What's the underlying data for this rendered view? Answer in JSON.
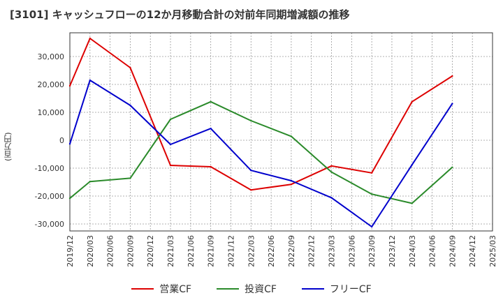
{
  "chart_data": {
    "type": "line",
    "title": "[3101]  キャッシュフローの12か月移動合計の対前年同期増減額の推移",
    "ylabel": "(百万円)",
    "xlabel": "",
    "ylim": [
      -32500,
      38500
    ],
    "yticks": [
      30000,
      20000,
      10000,
      0,
      -10000,
      -20000,
      -30000
    ],
    "ytick_labels": [
      "30,000",
      "20,000",
      "10,000",
      "0",
      "-10,000",
      "-20,000",
      "-30,000"
    ],
    "categories": [
      "2019/12",
      "2020/03",
      "2020/06",
      "2020/09",
      "2020/12",
      "2021/03",
      "2021/06",
      "2021/09",
      "2021/12",
      "2022/03",
      "2022/06",
      "2022/09",
      "2022/12",
      "2023/03",
      "2023/06",
      "2023/09",
      "2023/12",
      "2024/03",
      "2024/06",
      "2024/09",
      "2024/12",
      "2025/03"
    ],
    "series": [
      {
        "name": "営業CF",
        "color": "#dd0000",
        "values": [
          19500,
          36500,
          null,
          26000,
          null,
          -9000,
          null,
          -9500,
          null,
          -17800,
          null,
          -15800,
          null,
          -9200,
          null,
          -11700,
          null,
          13800,
          null,
          23000,
          null,
          null
        ]
      },
      {
        "name": "投資CF",
        "color": "#2a8a2a",
        "values": [
          -20800,
          -14800,
          null,
          -13600,
          null,
          7500,
          null,
          13800,
          null,
          7000,
          null,
          1400,
          null,
          -11400,
          null,
          -19300,
          null,
          -22600,
          null,
          -9700,
          null,
          null
        ]
      },
      {
        "name": "フリーCF",
        "color": "#0000cc",
        "values": [
          -1300,
          21500,
          null,
          12500,
          null,
          -1500,
          null,
          4200,
          null,
          -10800,
          null,
          -14500,
          null,
          -20600,
          null,
          -31000,
          null,
          -8800,
          null,
          13100,
          null,
          null
        ]
      }
    ],
    "grid": true,
    "legend_position": "bottom"
  }
}
